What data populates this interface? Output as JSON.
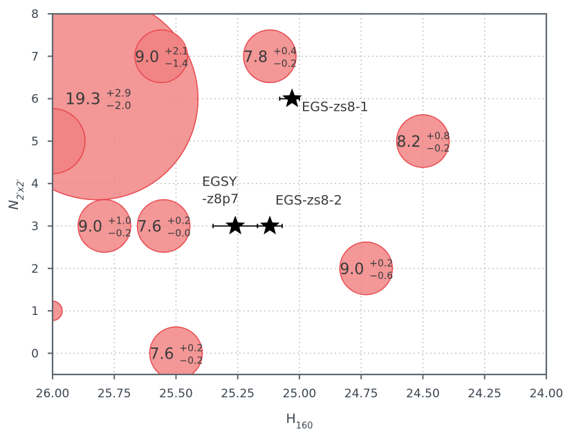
{
  "chart_data": {
    "type": "scatter",
    "xlabel": "H",
    "xlabel_sub": "160",
    "ylabel": "N",
    "ylabel_sub": "2′x2′",
    "xlim": [
      26.0,
      24.0
    ],
    "ylim": [
      -0.5,
      8.0
    ],
    "xticks": [
      "26.00",
      "25.75",
      "25.50",
      "25.25",
      "25.00",
      "24.75",
      "24.50",
      "24.25",
      "24.00"
    ],
    "yticks": [
      "0",
      "1",
      "2",
      "3",
      "4",
      "5",
      "6",
      "7",
      "8"
    ],
    "grid": true,
    "bubble_color": "#f08080",
    "bubble_edge_color": "#e8474d",
    "star_color": "#000000",
    "bubbles": [
      {
        "x": 25.82,
        "y": 6,
        "value": "19.3",
        "upper": "+2.9",
        "lower": "−2.0",
        "size": "large"
      },
      {
        "x": 26.0,
        "y": 5,
        "value": "",
        "upper": "",
        "lower": "",
        "size": "medium"
      },
      {
        "x": 25.56,
        "y": 7,
        "value": "9.0",
        "upper": "+2.1",
        "lower": "−1.4",
        "size": "small"
      },
      {
        "x": 25.12,
        "y": 7,
        "value": "7.8",
        "upper": "+0.4",
        "lower": "−0.2",
        "size": "small"
      },
      {
        "x": 24.5,
        "y": 5,
        "value": "8.2",
        "upper": "+0.8",
        "lower": "−0.2",
        "size": "small"
      },
      {
        "x": 25.79,
        "y": 3,
        "value": "9.0",
        "upper": "+1.0",
        "lower": "−0.2",
        "size": "small"
      },
      {
        "x": 25.55,
        "y": 3,
        "value": "7.6",
        "upper": "+0.2",
        "lower": "−0.0",
        "size": "small"
      },
      {
        "x": 24.73,
        "y": 2,
        "value": "9.0",
        "upper": "+0.2",
        "lower": "−0.6",
        "size": "small"
      },
      {
        "x": 25.5,
        "y": 0,
        "value": "7.6",
        "upper": "+0.2",
        "lower": "−0.2",
        "size": "small"
      },
      {
        "x": 26.0,
        "y": 1,
        "value": "",
        "upper": "",
        "lower": "",
        "size": "tiny"
      }
    ],
    "stars": [
      {
        "name": "EGS-zs8-1",
        "x": 25.03,
        "y": 6,
        "xerr_low": 0.05,
        "xerr_high": 0.03,
        "label_lines": [
          "EGS-zs8-1"
        ],
        "label_pos": "right"
      },
      {
        "name": "EGSY -z8p7",
        "x": 25.26,
        "y": 3,
        "xerr_low": 0.09,
        "xerr_high": 0.09,
        "label_lines": [
          "EGSY",
          "-z8p7"
        ],
        "label_pos": "above-left"
      },
      {
        "name": "EGS-zs8-2",
        "x": 25.12,
        "y": 3,
        "xerr_low": 0.05,
        "xerr_high": 0.05,
        "label_lines": [
          "EGS-zs8-2"
        ],
        "label_pos": "above-right"
      }
    ]
  }
}
